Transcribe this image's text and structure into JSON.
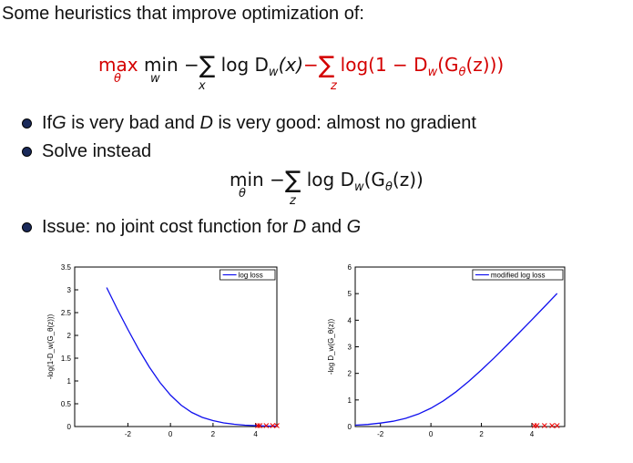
{
  "heading": "Some heuristics that improve optimization of:",
  "equation1": {
    "max": "max",
    "max_sub": "θ",
    "min": "min",
    "min_sub": "w",
    "minus1": "−",
    "sum1_sub": "x",
    "term1": "log D",
    "term1_sub": "w",
    "term1_arg": "(x)",
    "minus2": "−",
    "sum2_sub": "z",
    "term2": "log(1 − D",
    "term2_sub": "w",
    "term2_arg": "(G",
    "term2_theta": "θ",
    "term2_end": "(z)))"
  },
  "bullets": [
    {
      "pre": "If ",
      "g": "G",
      "mid": " is very bad and ",
      "d": "D",
      "post": " is very good: almost no gradient"
    },
    {
      "text": "Solve instead"
    },
    {
      "pre": "Issue: no joint cost function for ",
      "d": "D",
      "mid": " and ",
      "g": "G"
    }
  ],
  "equation2": {
    "min": "min",
    "min_sub": "θ",
    "minus": "−",
    "sum_sub": "z",
    "term": "log D",
    "term_sub": "w",
    "arg": "(G",
    "theta": "θ",
    "end": "(z))"
  },
  "chart_data": [
    {
      "type": "line",
      "legend": "log loss",
      "ylabel": "-log(1-D_w(G_θ(z)))",
      "xlim": [
        -4.5,
        5
      ],
      "ylim": [
        0,
        3.5
      ],
      "xticks": [
        "-2",
        "0",
        "2",
        "4"
      ],
      "yticks": [
        "0",
        "0.5",
        "1",
        "1.5",
        "2",
        "2.5",
        "3",
        "3.5"
      ],
      "series": [
        {
          "x": [
            -3,
            -2.5,
            -2,
            -1.5,
            -1,
            -0.5,
            0,
            0.5,
            1,
            1.5,
            2,
            2.5,
            3,
            3.5,
            4,
            4.5,
            5
          ],
          "y": [
            3.05,
            2.58,
            2.13,
            1.7,
            1.31,
            0.97,
            0.69,
            0.47,
            0.31,
            0.2,
            0.13,
            0.08,
            0.05,
            0.03,
            0.02,
            0.01,
            0.01
          ]
        }
      ],
      "markers": {
        "x": [
          4.1,
          4.2,
          4.5,
          4.8,
          5.0
        ],
        "y": [
          0,
          0,
          0,
          0,
          0
        ]
      },
      "color": "#1010ee",
      "marker_color": "#ee0000"
    },
    {
      "type": "line",
      "legend": "modified log loss",
      "ylabel": "-log D_w(G_θ(z))",
      "xlim": [
        -3,
        5.3
      ],
      "ylim": [
        0,
        6
      ],
      "xticks": [
        "-2",
        "0",
        "2",
        "4"
      ],
      "yticks": [
        "0",
        "1",
        "2",
        "3",
        "4",
        "5",
        "6"
      ],
      "series": [
        {
          "x": [
            -3,
            -2.5,
            -2,
            -1.5,
            -1,
            -0.5,
            0,
            0.5,
            1,
            1.5,
            2,
            2.5,
            3,
            3.5,
            4,
            4.5,
            5
          ],
          "y": [
            0.05,
            0.08,
            0.13,
            0.2,
            0.31,
            0.47,
            0.69,
            0.97,
            1.31,
            1.7,
            2.13,
            2.58,
            3.05,
            3.53,
            4.02,
            4.51,
            5.01
          ]
        }
      ],
      "markers": {
        "x": [
          4.1,
          4.2,
          4.5,
          4.8,
          5.0
        ],
        "y": [
          0,
          0,
          0,
          0,
          0
        ]
      },
      "color": "#1010ee",
      "marker_color": "#ee0000"
    }
  ]
}
